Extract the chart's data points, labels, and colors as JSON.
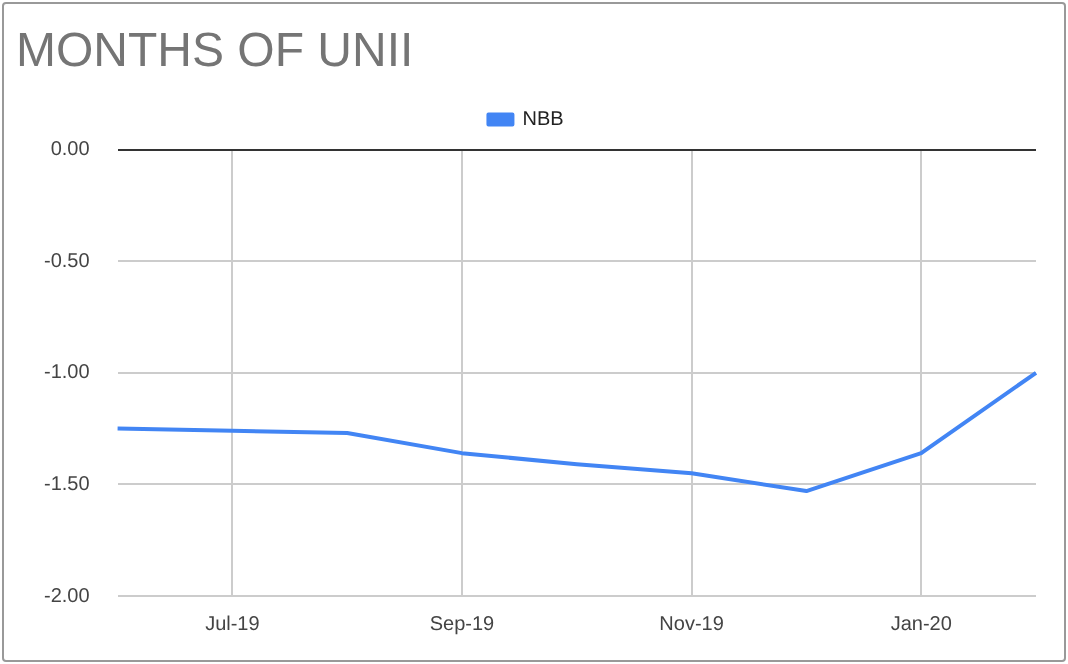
{
  "chart_data": {
    "type": "line",
    "title": "MONTHS OF UNII",
    "categories": [
      null,
      "Jul-19",
      null,
      "Sep-19",
      null,
      "Nov-19",
      null,
      "Jan-20",
      null
    ],
    "series": [
      {
        "name": "NBB",
        "color": "#4285f4",
        "values": [
          -1.25,
          -1.26,
          -1.27,
          -1.36,
          -1.41,
          -1.45,
          -1.53,
          -1.36,
          -1.0
        ]
      }
    ],
    "ylim": [
      -2,
      0
    ],
    "yticks": [
      {
        "value": 0,
        "label": "0.00"
      },
      {
        "value": -0.5,
        "label": "-0.50"
      },
      {
        "value": -1,
        "label": "-1.00"
      },
      {
        "value": -1.5,
        "label": "-1.50"
      },
      {
        "value": -2,
        "label": "-2.00"
      }
    ],
    "grid": true,
    "legend": "top",
    "marker": "none",
    "line_style": "solid"
  }
}
